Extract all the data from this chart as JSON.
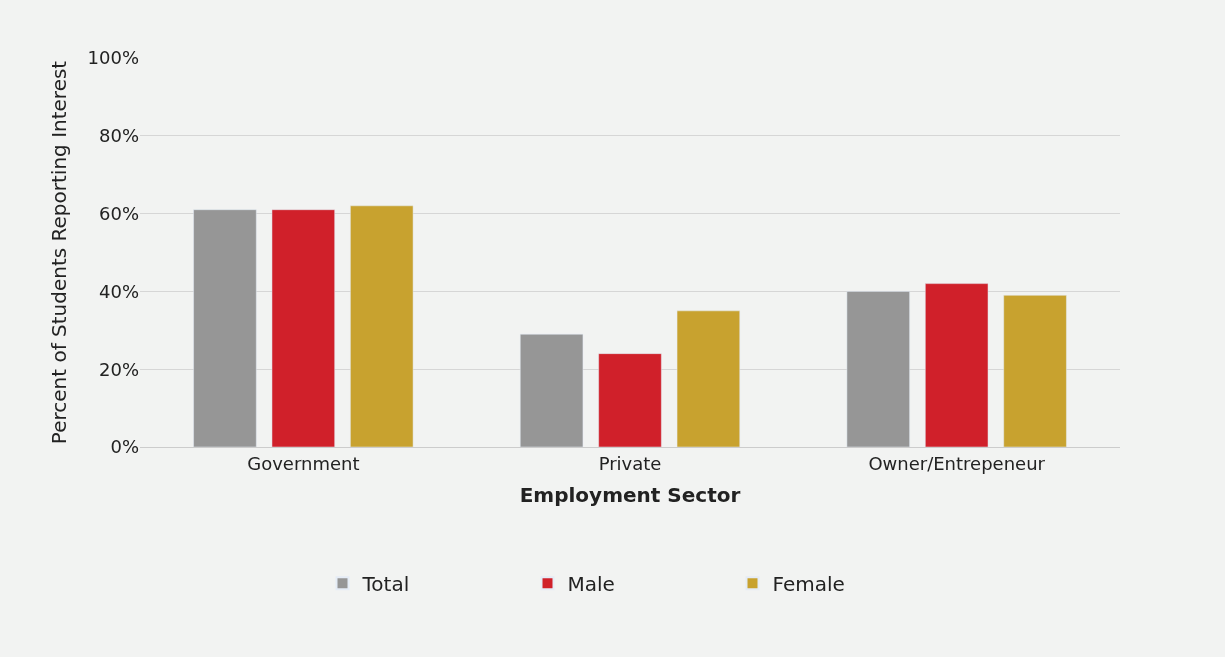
{
  "chart_data": {
    "type": "bar",
    "xlabel": "Employment Sector",
    "ylabel": "Percent of Students Reporting Interest",
    "categories": [
      "Government",
      "Private",
      "Owner/Entrepeneur"
    ],
    "series": [
      {
        "name": "Total",
        "color": "#969696",
        "values": [
          61,
          29,
          40
        ]
      },
      {
        "name": "Male",
        "color": "#d0202a",
        "values": [
          61,
          24,
          42
        ]
      },
      {
        "name": "Female",
        "color": "#c8a22f",
        "values": [
          62,
          35,
          39
        ]
      }
    ],
    "ylim": [
      0,
      100
    ],
    "yticks": [
      {
        "value": 0,
        "label": "0%"
      },
      {
        "value": 20,
        "label": "20%"
      },
      {
        "value": 40,
        "label": "40%"
      },
      {
        "value": 60,
        "label": "60%"
      },
      {
        "value": 80,
        "label": "80%"
      },
      {
        "value": 100,
        "label": "100%"
      }
    ],
    "grid": "y",
    "legend": "bottom"
  }
}
